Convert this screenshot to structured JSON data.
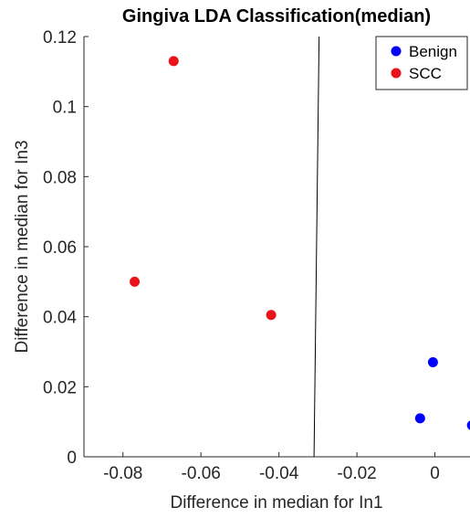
{
  "chart_data": {
    "type": "scatter",
    "title": "Gingiva LDA Classification(median)",
    "xlabel": "Difference in median for In1",
    "ylabel": "Difference in median for In3",
    "xlim": [
      -0.09,
      0.009
    ],
    "ylim": [
      0,
      0.12
    ],
    "xticks": [
      -0.08,
      -0.06,
      -0.04,
      -0.02,
      0
    ],
    "xtick_labels": [
      "-0.08",
      "-0.06",
      "-0.04",
      "-0.02",
      "0"
    ],
    "yticks": [
      0,
      0.02,
      0.04,
      0.06,
      0.08,
      0.1,
      0.12
    ],
    "ytick_labels": [
      "0",
      "0.02",
      "0.04",
      "0.06",
      "0.08",
      "0.1",
      "0.12"
    ],
    "grid": false,
    "legend_position": "top-right",
    "series": [
      {
        "name": "Benign",
        "color": "#0000ff",
        "points": [
          {
            "x": -0.0005,
            "y": 0.027
          },
          {
            "x": -0.0038,
            "y": 0.011
          },
          {
            "x": 0.0095,
            "y": 0.009
          }
        ]
      },
      {
        "name": "SCC",
        "color": "#e8141a",
        "points": [
          {
            "x": -0.067,
            "y": 0.113
          },
          {
            "x": -0.077,
            "y": 0.05
          },
          {
            "x": -0.042,
            "y": 0.0405
          }
        ]
      }
    ],
    "decision_boundary": {
      "color": "#000000",
      "from": {
        "x": -0.0297,
        "y": 0.12
      },
      "to": {
        "x": -0.031,
        "y": 0
      }
    }
  }
}
